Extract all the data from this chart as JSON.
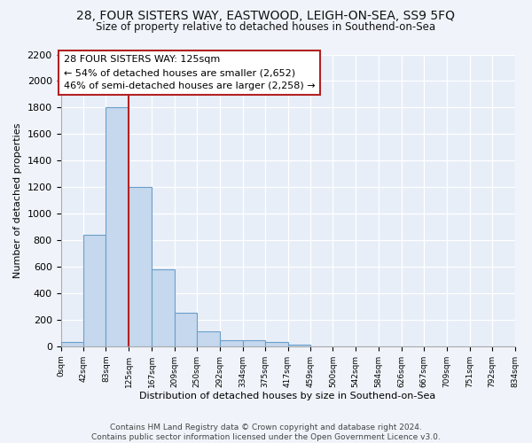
{
  "title1": "28, FOUR SISTERS WAY, EASTWOOD, LEIGH-ON-SEA, SS9 5FQ",
  "title2": "Size of property relative to detached houses in Southend-on-Sea",
  "xlabel": "Distribution of detached houses by size in Southend-on-Sea",
  "ylabel": "Number of detached properties",
  "bin_edges": [
    0,
    42,
    83,
    125,
    167,
    209,
    250,
    292,
    334,
    375,
    417,
    459,
    500,
    542,
    584,
    626,
    667,
    709,
    751,
    792,
    834
  ],
  "bar_heights": [
    30,
    840,
    1800,
    1200,
    580,
    255,
    115,
    45,
    45,
    30,
    15,
    0,
    0,
    0,
    0,
    0,
    0,
    0,
    0,
    0
  ],
  "bar_color": "#c5d8ee",
  "bar_edge_color": "#6a9fc8",
  "property_value": 125,
  "red_line_color": "#b22222",
  "annotation_text": "28 FOUR SISTERS WAY: 125sqm\n← 54% of detached houses are smaller (2,652)\n46% of semi-detached houses are larger (2,258) →",
  "annotation_box_color": "#ffffff",
  "annotation_box_edge_color": "#b22222",
  "tick_labels": [
    "0sqm",
    "42sqm",
    "83sqm",
    "125sqm",
    "167sqm",
    "209sqm",
    "250sqm",
    "292sqm",
    "334sqm",
    "375sqm",
    "417sqm",
    "459sqm",
    "500sqm",
    "542sqm",
    "584sqm",
    "626sqm",
    "667sqm",
    "709sqm",
    "751sqm",
    "792sqm",
    "834sqm"
  ],
  "ylim_max": 2200,
  "yticks": [
    0,
    200,
    400,
    600,
    800,
    1000,
    1200,
    1400,
    1600,
    1800,
    2000,
    2200
  ],
  "footer": "Contains HM Land Registry data © Crown copyright and database right 2024.\nContains public sector information licensed under the Open Government Licence v3.0.",
  "bg_color": "#f0f4fa",
  "plot_bg_color": "#e8eef8",
  "grid_color": "#ffffff"
}
